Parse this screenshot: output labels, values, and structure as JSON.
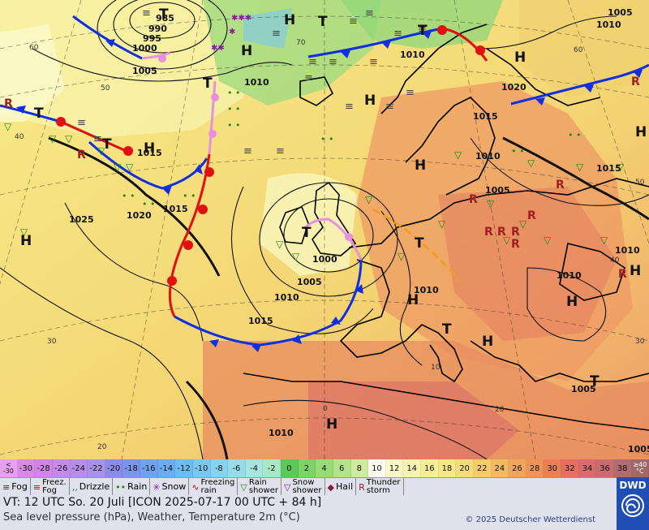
{
  "map": {
    "pressure_labels": [
      {
        "text": "985"
      },
      {
        "text": "990"
      },
      {
        "text": "995"
      },
      {
        "text": "1000"
      },
      {
        "text": "1005"
      },
      {
        "text": "1010"
      },
      {
        "text": "1015"
      },
      {
        "text": "1020"
      },
      {
        "text": "1025"
      },
      {
        "text": "1005"
      },
      {
        "text": "1010"
      },
      {
        "text": "1015"
      },
      {
        "text": "1010"
      },
      {
        "text": "1005"
      },
      {
        "text": "1010"
      },
      {
        "text": "1015"
      },
      {
        "text": "1000"
      },
      {
        "text": "1005"
      },
      {
        "text": "1010"
      },
      {
        "text": "1015"
      },
      {
        "text": "1020"
      },
      {
        "text": "1015"
      },
      {
        "text": "1010"
      },
      {
        "text": "1010"
      },
      {
        "text": "1010"
      },
      {
        "text": "1005"
      },
      {
        "text": "1005"
      },
      {
        "text": "1010"
      }
    ],
    "grid_labels": [
      "60",
      "50",
      "40",
      "30",
      "20",
      "0",
      "10",
      "20",
      "60",
      "40",
      "50",
      "30",
      "70"
    ],
    "pressure_centers": [
      "H",
      "H",
      "H",
      "H",
      "H",
      "H",
      "H",
      "H",
      "H",
      "H",
      "H",
      "H",
      "H",
      "T",
      "T",
      "T",
      "T",
      "T",
      "T",
      "T",
      "T",
      "T",
      "T"
    ]
  },
  "temperature_scale": {
    "low_label": "<\n-30",
    "high_label": "≥40\n°C",
    "steps": [
      {
        "label": "-30",
        "color": "#d68be0"
      },
      {
        "label": "-28",
        "color": "#cf86e6"
      },
      {
        "label": "-26",
        "color": "#c48ae8"
      },
      {
        "label": "-24",
        "color": "#b68ee8"
      },
      {
        "label": "-22",
        "color": "#a892e8"
      },
      {
        "label": "-20",
        "color": "#8a8de8"
      },
      {
        "label": "-18",
        "color": "#7a96ea"
      },
      {
        "label": "-16",
        "color": "#70a2ee"
      },
      {
        "label": "-14",
        "color": "#6aaef0"
      },
      {
        "label": "-12",
        "color": "#6cbcf2"
      },
      {
        "label": "-10",
        "color": "#78c8f2"
      },
      {
        "label": "-8",
        "color": "#86d4f0"
      },
      {
        "label": "-6",
        "color": "#96dcea"
      },
      {
        "label": "-4",
        "color": "#a8e4e0"
      },
      {
        "label": "-2",
        "color": "#a8e8c8"
      },
      {
        "label": "0",
        "color": "#5cc85a"
      },
      {
        "label": "2",
        "color": "#7cd466"
      },
      {
        "label": "4",
        "color": "#98dc78"
      },
      {
        "label": "6",
        "color": "#b4e48a"
      },
      {
        "label": "8",
        "color": "#cceca0"
      },
      {
        "label": "10",
        "color": "#fffdf0"
      },
      {
        "label": "12",
        "color": "#fbf8c8"
      },
      {
        "label": "14",
        "color": "#f8f4b0"
      },
      {
        "label": "16",
        "color": "#f6ee98"
      },
      {
        "label": "18",
        "color": "#f6e886"
      },
      {
        "label": "20",
        "color": "#f4dc78"
      },
      {
        "label": "22",
        "color": "#f4cc6c"
      },
      {
        "label": "24",
        "color": "#f2ba62"
      },
      {
        "label": "26",
        "color": "#f0a65c"
      },
      {
        "label": "28",
        "color": "#ee9458"
      },
      {
        "label": "30",
        "color": "#ea8056"
      },
      {
        "label": "32",
        "color": "#e47060"
      },
      {
        "label": "34",
        "color": "#d86c6c"
      },
      {
        "label": "36",
        "color": "#c86c70"
      },
      {
        "label": "38",
        "color": "#b06c70"
      }
    ]
  },
  "legend": {
    "items": [
      {
        "icon": "fog-icon",
        "glyph": "≡",
        "color": "#333",
        "label": "Fog"
      },
      {
        "icon": "freezing-fog-icon",
        "glyph": "≡",
        "color": "#c00",
        "label": "Freez.\nFog"
      },
      {
        "icon": "drizzle-icon",
        "glyph": "‚‚",
        "color": "#1a8a1a",
        "label": "Drizzle"
      },
      {
        "icon": "rain-icon",
        "glyph": "••",
        "color": "#1a8a1a",
        "label": "Rain"
      },
      {
        "icon": "snow-icon",
        "glyph": "✳",
        "color": "#8a1a9a",
        "label": "Snow"
      },
      {
        "icon": "freezing-rain-icon",
        "glyph": "∿",
        "color": "#c00",
        "label": "Freezing\nrain"
      },
      {
        "icon": "rain-shower-icon",
        "glyph": "▽",
        "color": "#1a8a1a",
        "label": "Rain\nshower"
      },
      {
        "icon": "snow-shower-icon",
        "glyph": "▽",
        "color": "#8a1a9a",
        "label": "Snow\nshower"
      },
      {
        "icon": "hail-icon",
        "glyph": "◆",
        "color": "#8a1a4a",
        "label": "Hail"
      },
      {
        "icon": "thunderstorm-icon",
        "glyph": "R",
        "color": "#a02020",
        "label": "Thunder\nstorm"
      }
    ]
  },
  "info": {
    "valid_time": "VT: 12 UTC So.  20 Juli [ICON 2025-07-17  00 UTC + 84 h]",
    "subtitle": "Sea level pressure (hPa), Weather, Temperature 2m (°C)",
    "copyright": "© 2025 Deutscher Wetterdienst",
    "logo_text": "DWD"
  },
  "colors": {
    "cold_front": "#1030e0",
    "warm_front": "#e01010",
    "occlusion": "#e890e0",
    "trough": "#f0a020",
    "isobar": "#111111"
  }
}
